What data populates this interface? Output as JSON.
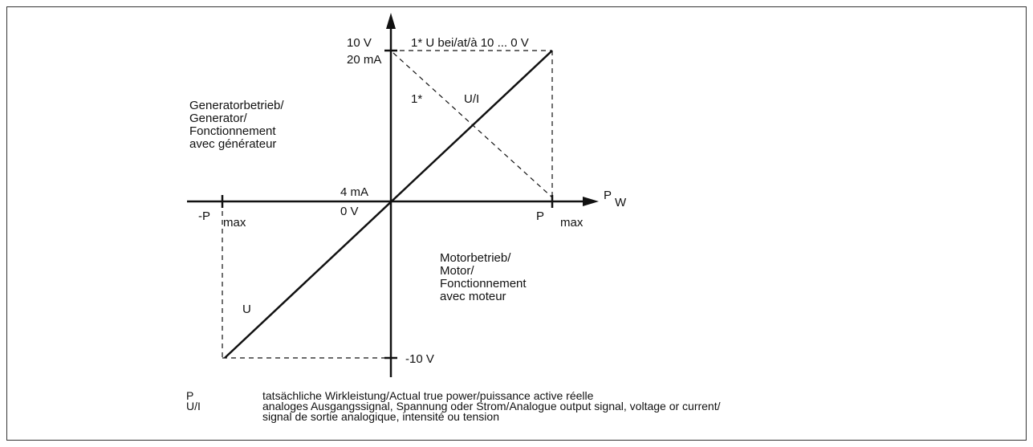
{
  "axes": {
    "y_top_voltage": "10 V",
    "y_top_current": "20 mA",
    "y_zero_current": "4 mA",
    "y_zero_voltage": "0 V",
    "y_bottom": "-10 V",
    "x_neg": "-P",
    "x_neg_sub": "max",
    "x_pos": "P",
    "x_pos_sub": "max",
    "x_name": "P",
    "x_name_sub": "W"
  },
  "annotations": {
    "inverse": "1* U bei/at/à 10 ... 0 V",
    "inverse_mark": "1*",
    "ui_line": "U/I",
    "u_line": "U"
  },
  "quadrants": {
    "generator": [
      "Generatorbetrieb/",
      "Generator/",
      "Fonctionnement",
      "avec générateur"
    ],
    "motor": [
      "Motorbetrieb/",
      "Motor/",
      "Fonctionnement",
      "avec moteur"
    ]
  },
  "legend": [
    {
      "symbol": "P",
      "text": [
        "tatsächliche Wirkleistung/Actual true power/puissance active réelle"
      ]
    },
    {
      "symbol": "U/I",
      "text": [
        "analoges Ausgangssignal, Spannung oder Strom/Analogue output signal, voltage or current/",
        "signal de sortie analogique, intensité ou tension"
      ]
    }
  ]
}
